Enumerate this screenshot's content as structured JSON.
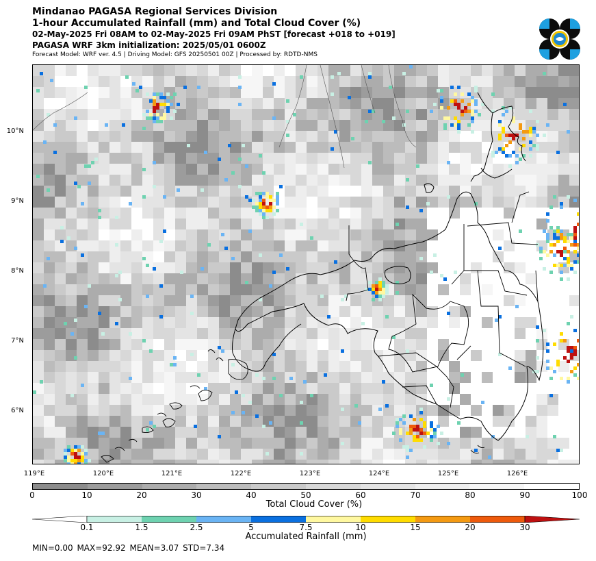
{
  "header": {
    "line1": "Mindanao PAGASA Regional Services Division",
    "line2": "1-hour Accumulated Rainfall (mm) and Total Cloud Cover (%)",
    "line3": "02-May-2025 Fri 08AM to 02-May-2025 Fri 09AM PhST [forecast +018 to +019]",
    "line4": "PAGASA WRF 3km initialization: 2025/05/01 0600Z",
    "line5": "Forecast Model: WRF ver. 4.5 | Driving Model: GFS 20250501 00Z | Processed by: RDTD-NMS"
  },
  "map": {
    "lat_labels": [
      "10°N",
      "9°N",
      "8°N",
      "7°N",
      "6°N"
    ],
    "lon_labels": [
      "119°E",
      "120°E",
      "121°E",
      "122°E",
      "123°E",
      "124°E",
      "125°E",
      "126°E"
    ]
  },
  "cloud_colorbar": {
    "ticks": [
      "0",
      "10",
      "20",
      "30",
      "40",
      "50",
      "60",
      "70",
      "80",
      "90",
      "100"
    ],
    "colors": [
      "#8c8c8c",
      "#9c9c9c",
      "#acacac",
      "#bcbcbc",
      "#cacaca",
      "#d8d8d8",
      "#e4e4e4",
      "#eeeeee",
      "#f6f6f6",
      "#ffffff"
    ],
    "label": "Total Cloud Cover (%)"
  },
  "rain_colorbar": {
    "ticks": [
      "0.1",
      "1.5",
      "2.5",
      "5",
      "7.5",
      "10",
      "15",
      "20",
      "30"
    ],
    "colors": [
      "#ffffff",
      "#c8f0e4",
      "#6ed2b0",
      "#6ab4f4",
      "#0a70e0",
      "#fff8a0",
      "#ffdc00",
      "#f49a12",
      "#ee5a0c",
      "#be1010"
    ],
    "label": "Accumulated Rainfall (mm)"
  },
  "stats": "MIN=0.00   MAX=92.92   MEAN=3.07   STD=7.34"
}
